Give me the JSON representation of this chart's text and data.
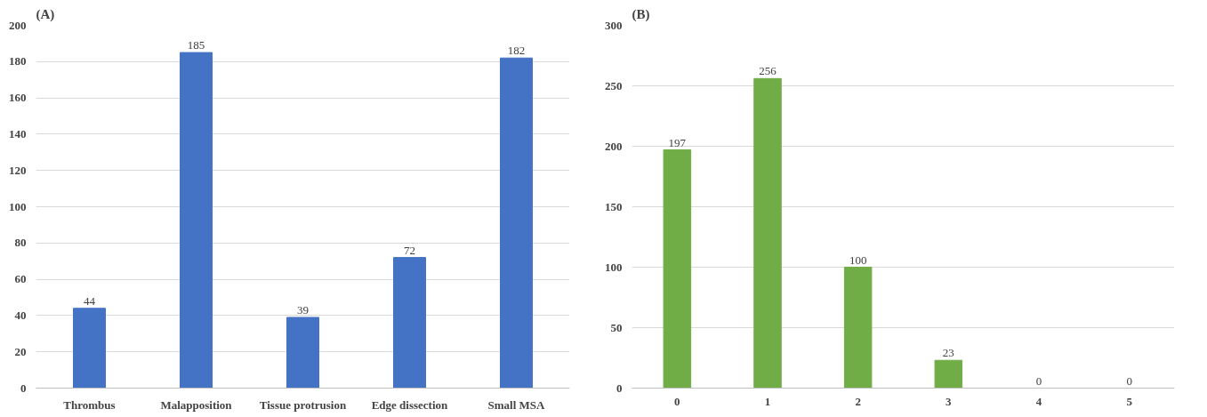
{
  "chart_data": [
    {
      "type": "bar",
      "title": "(A)",
      "categories": [
        "Thrombus",
        "Malapposition",
        "Tissue protrusion",
        "Edge dissection",
        "Small MSA"
      ],
      "values": [
        44,
        185,
        39,
        72,
        182
      ],
      "color": "#4472c4",
      "ylim": [
        0,
        200
      ],
      "yticks": [
        0,
        20,
        40,
        60,
        80,
        100,
        120,
        140,
        160,
        180,
        200
      ],
      "grid": "y",
      "data_labels": true
    },
    {
      "type": "bar",
      "title": "(B)",
      "categories": [
        "0",
        "1",
        "2",
        "3",
        "4",
        "5"
      ],
      "values": [
        197,
        256,
        100,
        23,
        0,
        0
      ],
      "color": "#70ad47",
      "ylim": [
        0,
        300
      ],
      "yticks": [
        0,
        50,
        100,
        150,
        200,
        250,
        300
      ],
      "grid": "y",
      "data_labels": true
    }
  ]
}
